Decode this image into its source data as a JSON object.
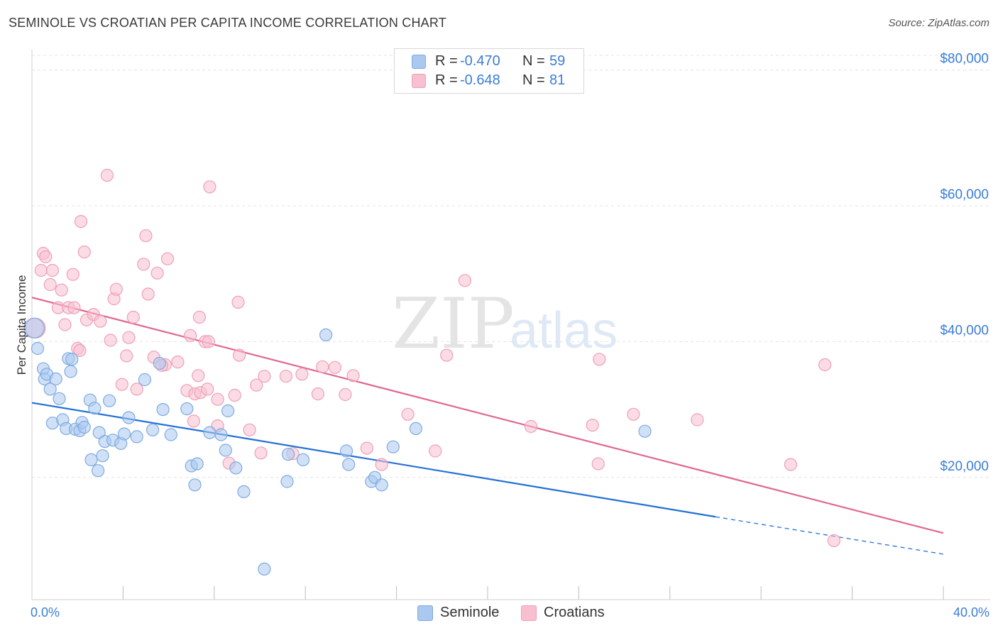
{
  "header": {
    "title": "SEMINOLE VS CROATIAN PER CAPITA INCOME CORRELATION CHART",
    "source": "Source: ZipAtlas.com"
  },
  "watermark": {
    "zip": "ZIP",
    "atlas": "atlas"
  },
  "legend": {
    "rows": [
      {
        "r_label": "R =",
        "r_value": "-0.470",
        "n_label": "N =",
        "n_value": "59"
      },
      {
        "r_label": "R =",
        "r_value": "-0.648",
        "n_label": "N =",
        "n_value": "81"
      }
    ]
  },
  "bottom_legend": {
    "seminole": "Seminole",
    "croatians": "Croatians"
  },
  "colors": {
    "seminole_fill": "#aac8f0",
    "seminole_stroke": "#7eaadf",
    "seminole_line": "#2370d6",
    "croatians_fill": "#f7bfd0",
    "croatians_stroke": "#ef9fb8",
    "croatians_line": "#e06890",
    "tick_text": "#3b7dd8",
    "grid": "#e4e4e4"
  },
  "chart_data": {
    "type": "scatter",
    "title": "SEMINOLE VS CROATIAN PER CAPITA INCOME CORRELATION CHART",
    "xlabel": "",
    "ylabel": "Per Capita Income",
    "x_tick_labels": [
      "0.0%",
      "40.0%"
    ],
    "y_tick_labels": [
      "$20,000",
      "$40,000",
      "$60,000",
      "$80,000"
    ],
    "y_tick_values": [
      20000,
      40000,
      60000,
      80000
    ],
    "xlim": [
      0,
      40
    ],
    "ylim": [
      2000,
      83000
    ],
    "grid": true,
    "legend_position": "top-center",
    "series": [
      {
        "name": "Seminole",
        "r": -0.47,
        "n": 59,
        "trend": {
          "x0": 0,
          "y0": 31000,
          "x1": 30,
          "y1": 14200,
          "dash_to_x": 40,
          "dash_to_y": 8700
        },
        "points": [
          [
            0.1,
            42000
          ],
          [
            0.25,
            39000
          ],
          [
            0.5,
            36000
          ],
          [
            0.55,
            34500
          ],
          [
            0.65,
            35200
          ],
          [
            0.8,
            33000
          ],
          [
            0.9,
            28000
          ],
          [
            1.05,
            34500
          ],
          [
            1.2,
            31600
          ],
          [
            1.35,
            28500
          ],
          [
            1.5,
            27200
          ],
          [
            1.6,
            37500
          ],
          [
            1.7,
            35600
          ],
          [
            1.75,
            37400
          ],
          [
            1.9,
            27100
          ],
          [
            2.1,
            26900
          ],
          [
            2.2,
            28100
          ],
          [
            2.3,
            27400
          ],
          [
            2.55,
            31400
          ],
          [
            2.6,
            22600
          ],
          [
            2.75,
            30200
          ],
          [
            2.9,
            21000
          ],
          [
            2.95,
            26600
          ],
          [
            3.1,
            23200
          ],
          [
            3.2,
            25300
          ],
          [
            3.4,
            31300
          ],
          [
            3.55,
            25500
          ],
          [
            3.9,
            25000
          ],
          [
            4.05,
            26400
          ],
          [
            4.25,
            28800
          ],
          [
            4.6,
            26000
          ],
          [
            4.95,
            34400
          ],
          [
            5.3,
            27000
          ],
          [
            5.6,
            36800
          ],
          [
            5.75,
            30000
          ],
          [
            6.1,
            26300
          ],
          [
            6.8,
            30100
          ],
          [
            7.0,
            21700
          ],
          [
            7.15,
            18900
          ],
          [
            7.25,
            22000
          ],
          [
            7.8,
            26600
          ],
          [
            8.3,
            26300
          ],
          [
            8.5,
            24000
          ],
          [
            8.6,
            29800
          ],
          [
            8.95,
            21400
          ],
          [
            9.3,
            17900
          ],
          [
            10.2,
            6500
          ],
          [
            11.2,
            19400
          ],
          [
            11.25,
            23400
          ],
          [
            11.9,
            22600
          ],
          [
            12.9,
            41000
          ],
          [
            13.8,
            23900
          ],
          [
            13.9,
            21900
          ],
          [
            14.9,
            19400
          ],
          [
            15.05,
            20000
          ],
          [
            15.35,
            18900
          ],
          [
            15.85,
            24500
          ],
          [
            16.85,
            27200
          ],
          [
            26.9,
            26800
          ]
        ]
      },
      {
        "name": "Croatians",
        "r": -0.648,
        "n": 81,
        "trend": {
          "x0": 0,
          "y0": 46500,
          "x1": 40,
          "y1": 11800
        },
        "points": [
          [
            0.15,
            42000
          ],
          [
            0.4,
            50500
          ],
          [
            0.5,
            53000
          ],
          [
            0.6,
            52500
          ],
          [
            0.8,
            48400
          ],
          [
            0.9,
            50500
          ],
          [
            1.15,
            45000
          ],
          [
            1.3,
            47600
          ],
          [
            1.45,
            42500
          ],
          [
            1.6,
            45000
          ],
          [
            1.8,
            49900
          ],
          [
            1.85,
            45000
          ],
          [
            2.0,
            39000
          ],
          [
            2.1,
            38700
          ],
          [
            2.15,
            57700
          ],
          [
            2.3,
            53200
          ],
          [
            2.4,
            43200
          ],
          [
            2.7,
            44000
          ],
          [
            3.0,
            43000
          ],
          [
            3.3,
            64500
          ],
          [
            3.45,
            40200
          ],
          [
            3.6,
            46300
          ],
          [
            3.7,
            47700
          ],
          [
            3.95,
            33700
          ],
          [
            4.15,
            37900
          ],
          [
            4.25,
            40600
          ],
          [
            4.45,
            43600
          ],
          [
            4.6,
            33000
          ],
          [
            4.9,
            51400
          ],
          [
            5.0,
            55600
          ],
          [
            5.1,
            47000
          ],
          [
            5.35,
            37700
          ],
          [
            5.5,
            50100
          ],
          [
            5.85,
            36600
          ],
          [
            5.95,
            52200
          ],
          [
            6.4,
            37000
          ],
          [
            6.8,
            32800
          ],
          [
            6.95,
            40900
          ],
          [
            7.1,
            28300
          ],
          [
            7.15,
            32300
          ],
          [
            7.3,
            35000
          ],
          [
            7.35,
            43600
          ],
          [
            7.4,
            32500
          ],
          [
            7.6,
            40000
          ],
          [
            7.7,
            33000
          ],
          [
            7.8,
            62800
          ],
          [
            8.15,
            31500
          ],
          [
            8.65,
            22100
          ],
          [
            8.9,
            32100
          ],
          [
            9.05,
            45800
          ],
          [
            9.1,
            38000
          ],
          [
            9.55,
            27000
          ],
          [
            9.85,
            33600
          ],
          [
            10.2,
            34900
          ],
          [
            11.15,
            34900
          ],
          [
            11.45,
            23500
          ],
          [
            11.85,
            35200
          ],
          [
            12.55,
            32300
          ],
          [
            12.75,
            36300
          ],
          [
            13.3,
            36200
          ],
          [
            13.75,
            32200
          ],
          [
            14.1,
            35000
          ],
          [
            14.7,
            24300
          ],
          [
            15.35,
            21900
          ],
          [
            16.5,
            29300
          ],
          [
            17.7,
            23900
          ],
          [
            24.6,
            27700
          ],
          [
            24.85,
            22000
          ],
          [
            26.4,
            29300
          ],
          [
            29.2,
            28500
          ],
          [
            33.3,
            21900
          ],
          [
            34.8,
            36600
          ],
          [
            35.2,
            10700
          ],
          [
            19.0,
            49000
          ],
          [
            18.2,
            38000
          ],
          [
            21.9,
            27500
          ],
          [
            7.75,
            40000
          ],
          [
            10.05,
            23600
          ],
          [
            5.7,
            36500
          ],
          [
            8.15,
            27600
          ],
          [
            24.9,
            37400
          ]
        ]
      }
    ]
  }
}
